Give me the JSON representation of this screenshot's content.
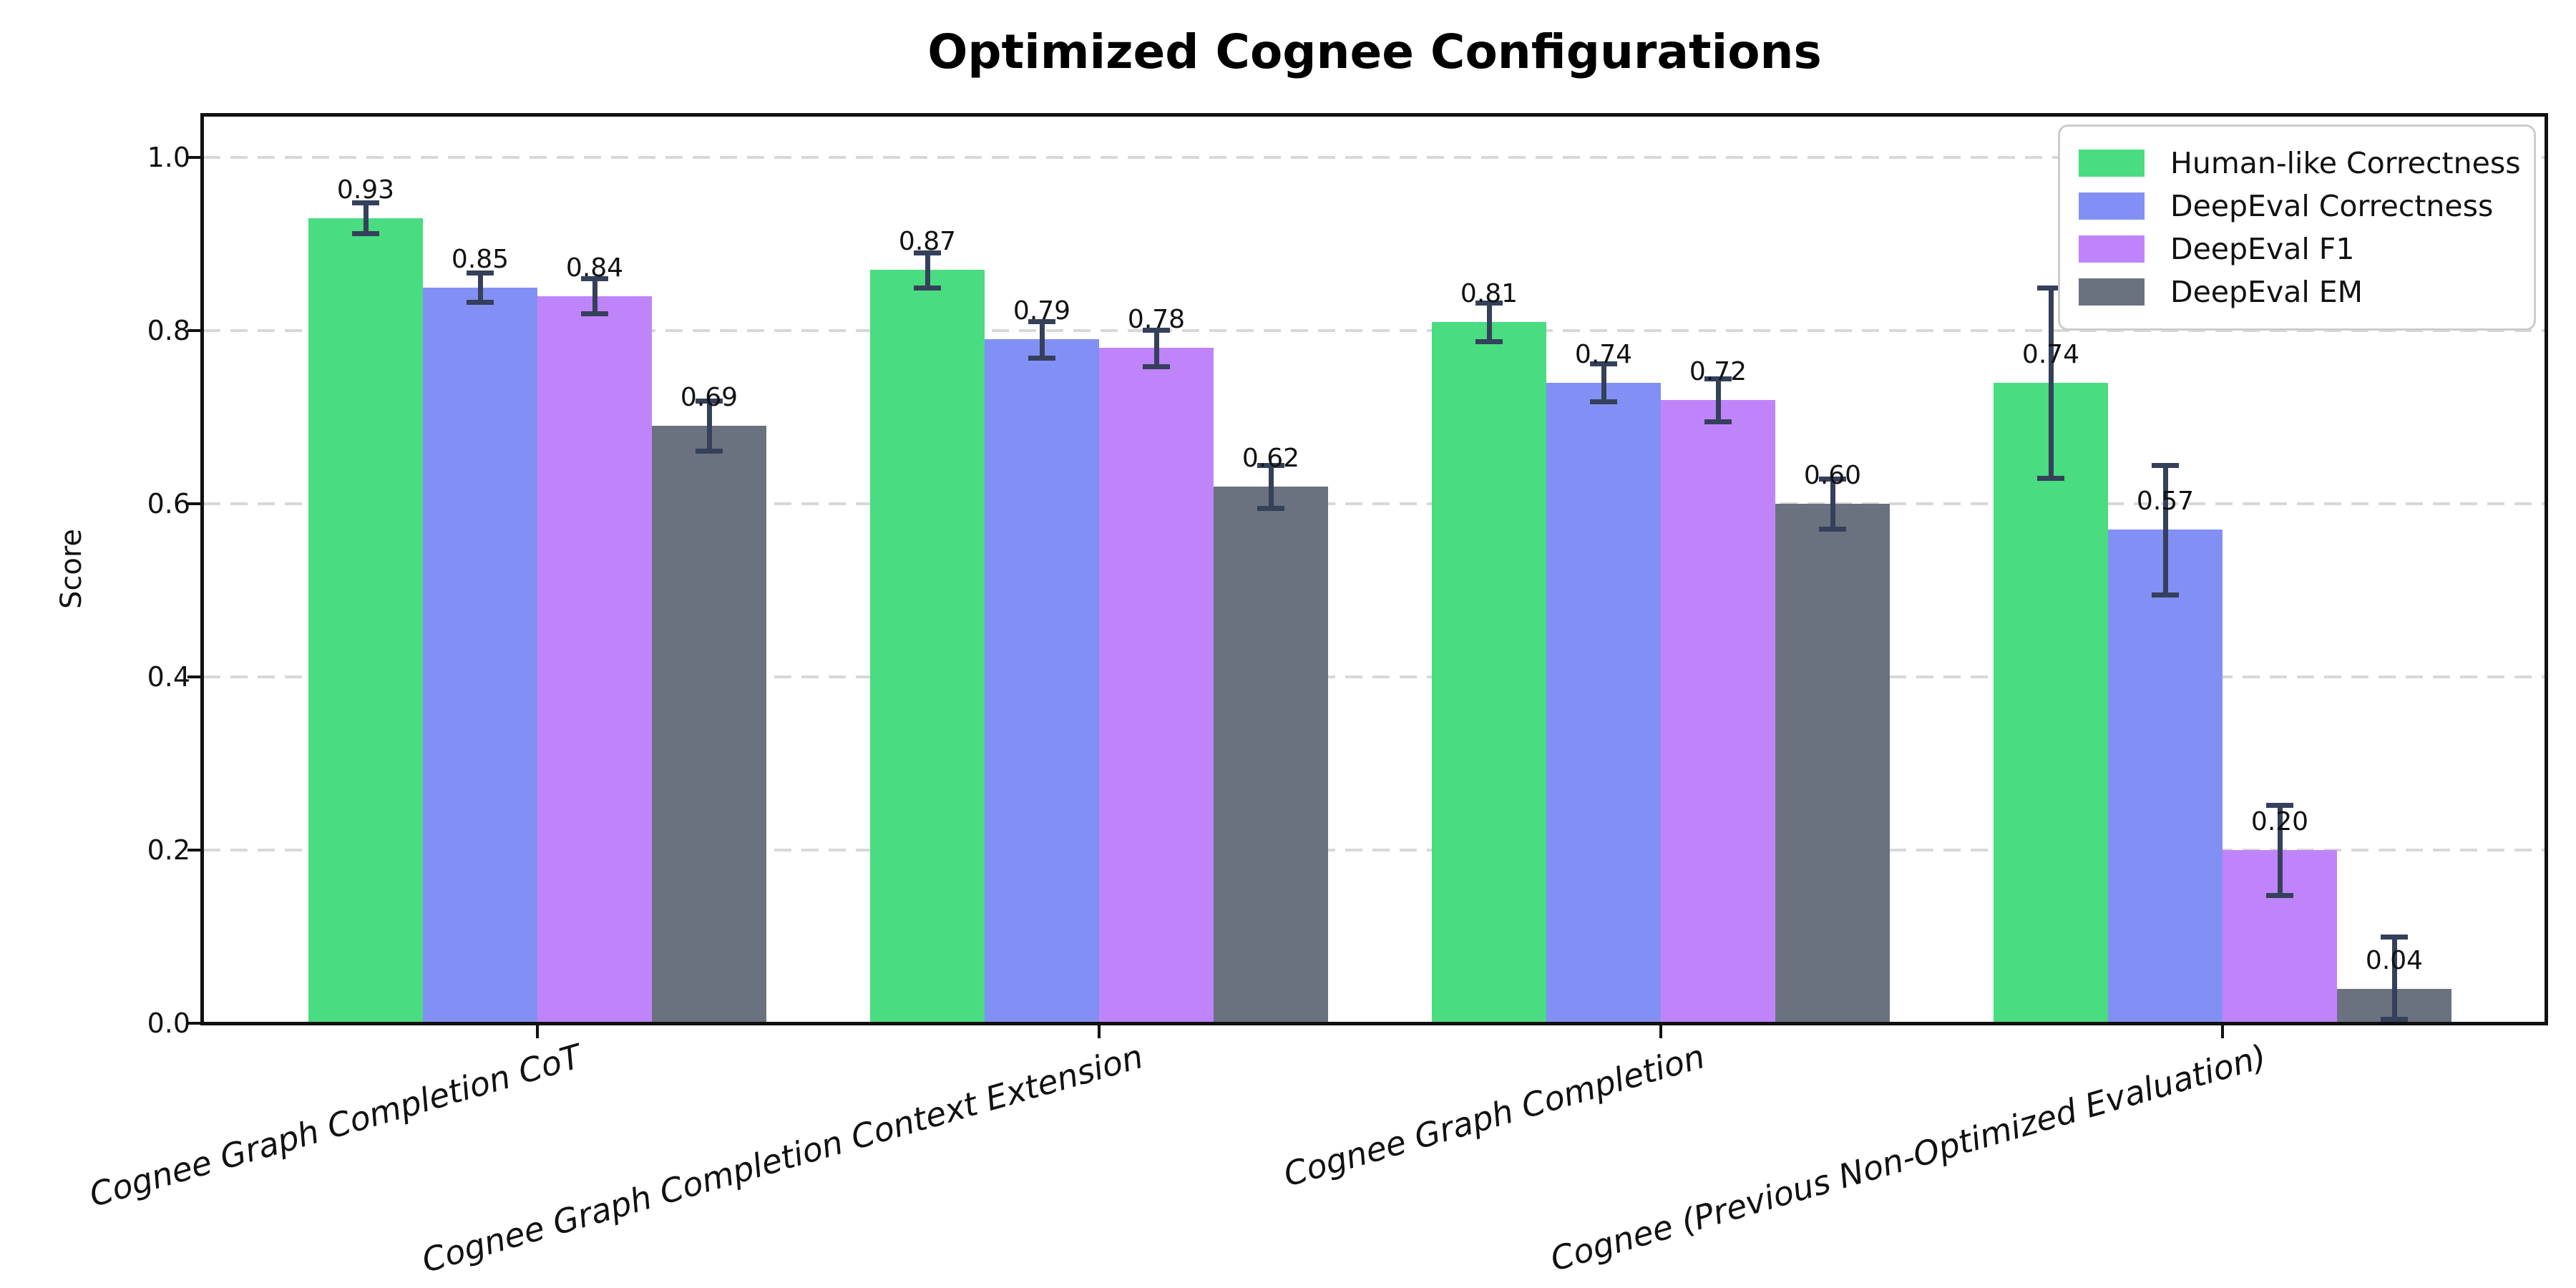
{
  "chart_data": {
    "type": "bar",
    "title": "Optimized Cognee Configurations",
    "xlabel": "",
    "ylabel": "Score",
    "ylim": [
      0,
      1.05
    ],
    "yticks": [
      "0.0",
      "0.2",
      "0.4",
      "0.6",
      "0.8",
      "1.0"
    ],
    "grid": "horizontal-dashed",
    "legend_position": "upper-right",
    "xtick_style": "italic-rotated",
    "error_bar_color": "#35405a",
    "categories": [
      "Cognee Graph Completion CoT",
      "Cognee Graph Completion Context Extension",
      "Cognee Graph Completion",
      "Cognee (Previous Non-Optimized Evaluation)"
    ],
    "series": [
      {
        "name": "Human-like Correctness",
        "color": "#4adc80",
        "values": [
          0.93,
          0.87,
          0.81,
          0.74
        ],
        "errors": [
          0.018,
          0.02,
          0.022,
          0.11
        ],
        "labels": [
          "0.93",
          "0.87",
          "0.81",
          "0.74"
        ]
      },
      {
        "name": "DeepEval Correctness",
        "color": "#8290f5",
        "values": [
          0.85,
          0.79,
          0.74,
          0.57
        ],
        "errors": [
          0.017,
          0.021,
          0.022,
          0.075
        ],
        "labels": [
          "0.85",
          "0.79",
          "0.74",
          "0.57"
        ]
      },
      {
        "name": "DeepEval F1",
        "color": "#c084fa",
        "values": [
          0.84,
          0.78,
          0.72,
          0.2
        ],
        "errors": [
          0.02,
          0.021,
          0.025,
          0.052
        ],
        "labels": [
          "0.84",
          "0.78",
          "0.72",
          "0.20"
        ]
      },
      {
        "name": "DeepEval EM",
        "color": "#6a7280",
        "values": [
          0.69,
          0.62,
          0.6,
          0.04
        ],
        "errors": [
          0.029,
          0.025,
          0.029,
          0.06
        ],
        "labels": [
          "0.69",
          "0.62",
          "0.60",
          "0.04"
        ]
      }
    ]
  }
}
